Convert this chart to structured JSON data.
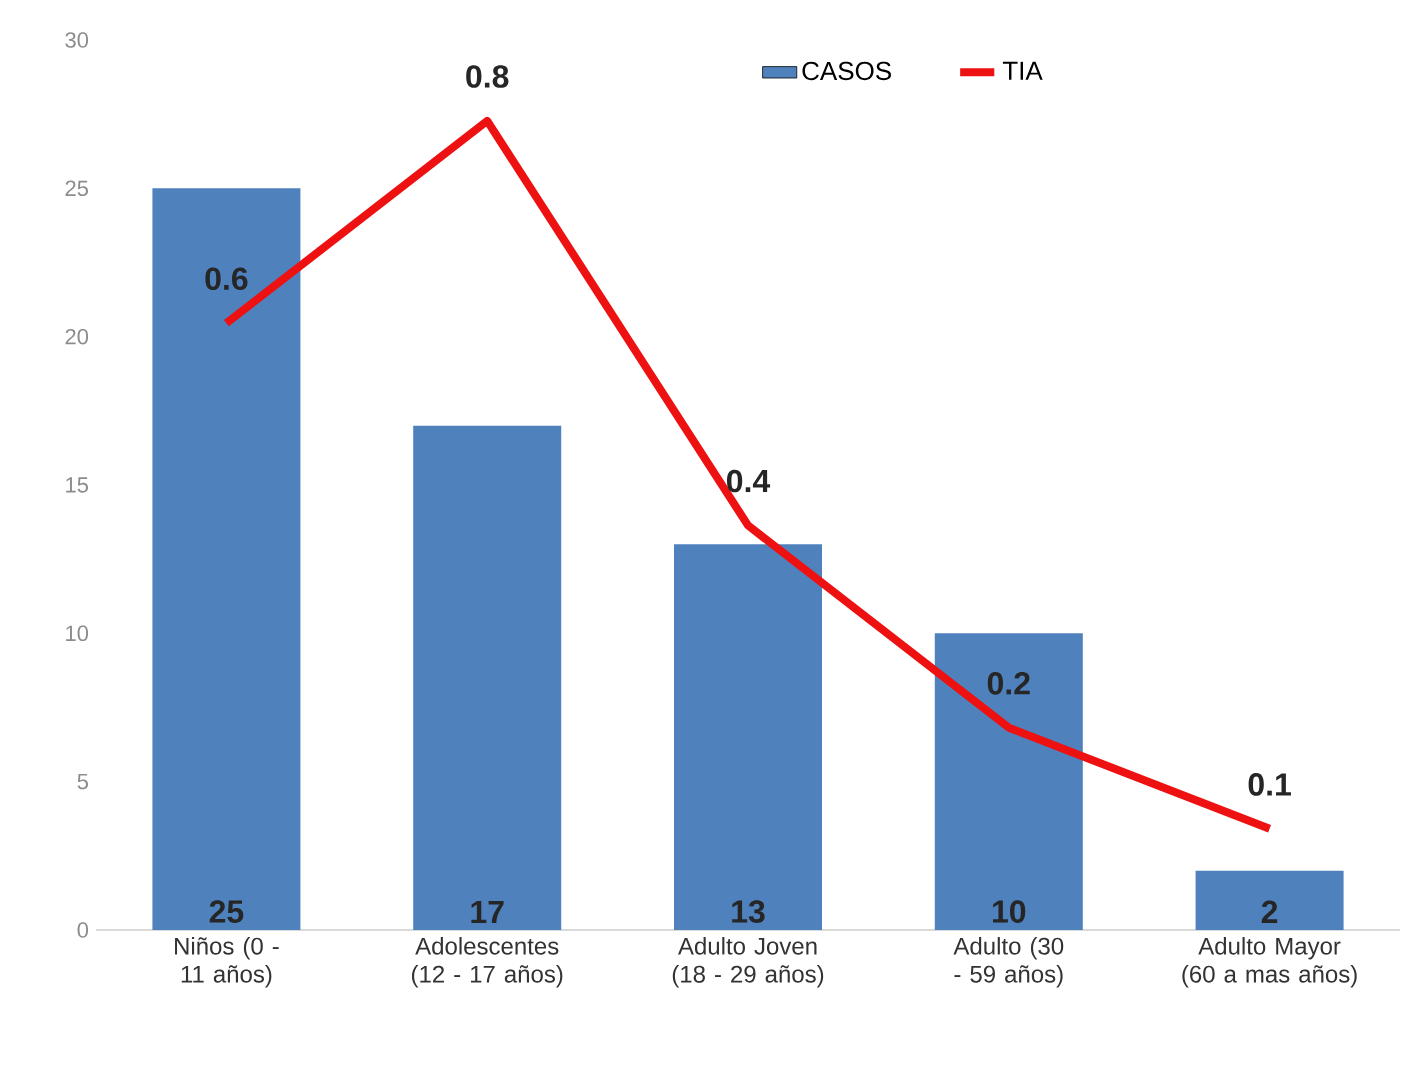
{
  "chart_data": {
    "type": "bar",
    "categories": [
      "Niños (0 - 11 años)",
      "Adolescentes (12 - 17 años)",
      "Adulto Joven (18 - 29 años)",
      "Adulto (30 - 59 años)",
      "Adulto Mayor (60 a mas años)"
    ],
    "series": [
      {
        "name": "CASOS",
        "color": "#4f81bd",
        "values": [
          25,
          17,
          13,
          10,
          2
        ]
      },
      {
        "name": "TIA",
        "type": "line",
        "axis": "y2",
        "color": "#ee1111",
        "values": [
          0.6,
          0.8,
          0.4,
          0.2,
          0.1
        ]
      }
    ],
    "ylim": [
      0,
      30
    ],
    "yticks": [
      0,
      5,
      10,
      15,
      20,
      25,
      30
    ],
    "data_labels": true,
    "legend": "top",
    "grid": false
  }
}
